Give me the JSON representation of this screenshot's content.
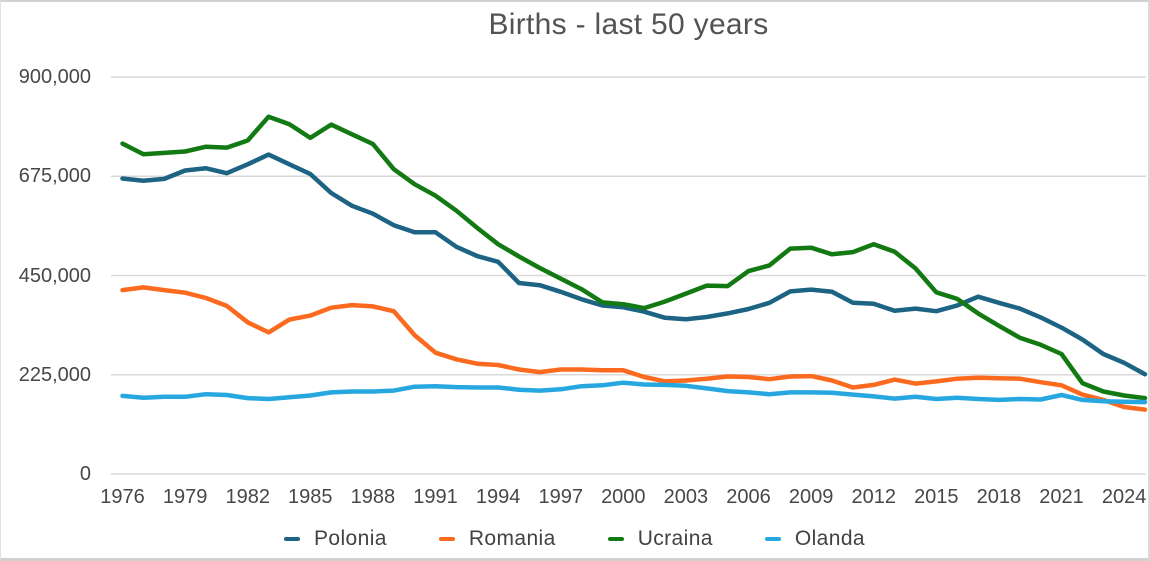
{
  "chart_data": {
    "type": "line",
    "title": "Births - last 50 years",
    "xlabel": "",
    "ylabel": "",
    "grid": "horizontal",
    "legend_position": "bottom",
    "ylim": [
      0,
      900000
    ],
    "y_ticks": [
      0,
      225000,
      450000,
      675000,
      900000
    ],
    "y_tick_labels": [
      "0",
      "225,000",
      "450,000",
      "675,000",
      "900,000"
    ],
    "x_ticks": [
      1976,
      1979,
      1982,
      1985,
      1988,
      1991,
      1994,
      1997,
      2000,
      2003,
      2006,
      2009,
      2012,
      2015,
      2018,
      2021,
      2024
    ],
    "x": [
      1976,
      1977,
      1978,
      1979,
      1980,
      1981,
      1982,
      1983,
      1984,
      1985,
      1986,
      1987,
      1988,
      1989,
      1990,
      1991,
      1992,
      1993,
      1994,
      1995,
      1996,
      1997,
      1998,
      1999,
      2000,
      2001,
      2002,
      2003,
      2004,
      2005,
      2006,
      2007,
      2008,
      2009,
      2010,
      2011,
      2012,
      2013,
      2014,
      2015,
      2016,
      2017,
      2018,
      2019,
      2020,
      2021,
      2022,
      2023,
      2024,
      2025
    ],
    "colors": {
      "gridline": "#d9d9d9",
      "axis_text": "#474747",
      "title_text": "#535353",
      "legend_text": "#424242"
    },
    "series": [
      {
        "name": "Polonia",
        "color": "#1d6484",
        "values": [
          670000,
          665000,
          669000,
          688000,
          693000,
          682000,
          702000,
          724000,
          702000,
          680000,
          637000,
          608000,
          590000,
          564000,
          548000,
          548000,
          515000,
          494000,
          481000,
          433000,
          428000,
          413000,
          396000,
          382000,
          378000,
          368000,
          354000,
          351000,
          356000,
          364000,
          374000,
          388000,
          414000,
          418000,
          413000,
          388000,
          386000,
          370000,
          375000,
          369000,
          382000,
          402000,
          388000,
          375000,
          355000,
          332000,
          305000,
          272000,
          252000,
          226000
        ]
      },
      {
        "name": "Romania",
        "color": "#fb6a1e",
        "values": [
          417000,
          423000,
          417000,
          411000,
          399000,
          381000,
          344000,
          321000,
          350000,
          359000,
          377000,
          383000,
          380000,
          369000,
          315000,
          275000,
          260000,
          250000,
          247000,
          237000,
          231000,
          237000,
          237000,
          235000,
          235000,
          220000,
          210000,
          212000,
          216000,
          221000,
          220000,
          215000,
          221000,
          222000,
          212000,
          196000,
          202000,
          214000,
          205000,
          210000,
          216000,
          218000,
          217000,
          216000,
          208000,
          201000,
          180000,
          168000,
          152000,
          146000
        ]
      },
      {
        "name": "Ucraina",
        "color": "#137a13",
        "values": [
          749000,
          725000,
          728000,
          731000,
          742000,
          740000,
          756000,
          810000,
          793000,
          762000,
          792000,
          770000,
          748000,
          691000,
          657000,
          631000,
          597000,
          558000,
          521000,
          493000,
          467000,
          443000,
          419000,
          389000,
          385000,
          376000,
          391000,
          409000,
          427000,
          426000,
          460000,
          473000,
          511000,
          513000,
          498000,
          503000,
          521000,
          504000,
          466000,
          412000,
          397000,
          364000,
          336000,
          309000,
          293000,
          272000,
          206000,
          187000,
          178000,
          172000
        ]
      },
      {
        "name": "Olanda",
        "color": "#27a7e0",
        "values": [
          177000,
          173000,
          175000,
          175000,
          181000,
          179000,
          172000,
          170000,
          174000,
          178000,
          185000,
          187000,
          187000,
          189000,
          198000,
          199000,
          197000,
          196000,
          196000,
          191000,
          189000,
          192000,
          199000,
          201000,
          207000,
          203000,
          202000,
          200000,
          194000,
          188000,
          185000,
          181000,
          185000,
          185000,
          184000,
          180000,
          176000,
          171000,
          175000,
          170000,
          173000,
          170000,
          168000,
          170000,
          169000,
          179000,
          168000,
          165000,
          164000,
          163000
        ]
      }
    ]
  }
}
